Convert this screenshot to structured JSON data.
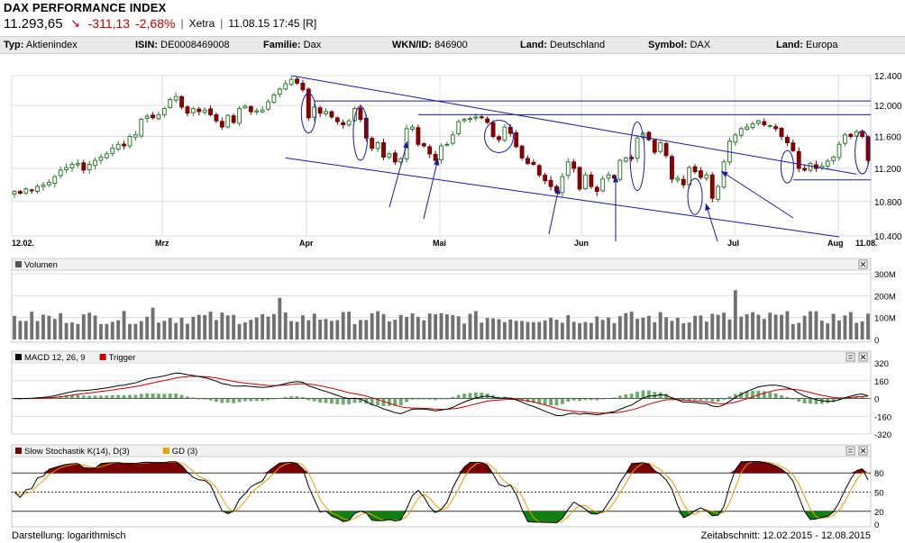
{
  "header": {
    "title": "DAX PERFORMANCE INDEX",
    "last": "11.293,65",
    "change": "-311,13",
    "change_pct": "-2,68%",
    "exchange": "Xetra",
    "timestamp": "11.08.15 17:45 [R]",
    "arrow_icon": "down-arrow-icon"
  },
  "info_bar": [
    {
      "label": "Typ:",
      "value": "Aktienindex"
    },
    {
      "label": "ISIN:",
      "value": "DE0008469008"
    },
    {
      "label": "Familie:",
      "value": "Dax"
    },
    {
      "label": "WKN/ID:",
      "value": "846900"
    },
    {
      "label": "Land:",
      "value": "Deutschland"
    },
    {
      "label": "Symbol:",
      "value": "DAX"
    },
    {
      "label": "Land:",
      "value": "Europa"
    }
  ],
  "footer": {
    "left": "Darstellung: logarithmisch",
    "right": "Zeitabschnitt: 12.02.2015 - 12.08.2015"
  },
  "chart_data": [
    {
      "type": "candlestick",
      "name": "price",
      "log_scale": true,
      "ylim": [
        10400,
        12400
      ],
      "y_ticks": [
        "12.400",
        "12.000",
        "11.600",
        "11.200",
        "10.800",
        "10.400"
      ],
      "x_ticks": [
        "12.02.",
        "Mrz",
        "Apr",
        "Mai",
        "Jun",
        "Jul",
        "Aug",
        "11.08."
      ],
      "grid": true,
      "close": [
        10920,
        10900,
        10950,
        10930,
        10980,
        11000,
        11030,
        11100,
        11180,
        11210,
        11250,
        11260,
        11180,
        11250,
        11300,
        11340,
        11380,
        11450,
        11500,
        11480,
        11600,
        11620,
        11820,
        11860,
        11840,
        11880,
        11960,
        12080,
        12120,
        11980,
        11900,
        11960,
        11920,
        11940,
        11880,
        11800,
        11720,
        11870,
        11780,
        11960,
        11990,
        11920,
        11930,
        11940,
        12050,
        12140,
        12220,
        12290,
        12350,
        12300,
        12210,
        11840,
        11980,
        11900,
        11920,
        11850,
        11790,
        11750,
        11800,
        11960,
        11820,
        11580,
        11450,
        11520,
        11340,
        11380,
        11280,
        11320,
        11700,
        11720,
        11500,
        11480,
        11380,
        11300,
        11480,
        11500,
        11620,
        11790,
        11820,
        11830,
        11850,
        11840,
        11780,
        11600,
        11560,
        11720,
        11640,
        11470,
        11330,
        11260,
        11250,
        11120,
        11050,
        10980,
        10920,
        11100,
        11280,
        11200,
        10950,
        11120,
        10980,
        10920,
        11070,
        11120,
        11080,
        11300,
        11330,
        11320,
        11580,
        11640,
        11560,
        11400,
        11520,
        11360,
        11070,
        11080,
        11000,
        11210,
        11160,
        11090,
        11120,
        10840,
        10980,
        11280,
        11540,
        11620,
        11700,
        11720,
        11760,
        11800,
        11750,
        11740,
        11700,
        11600,
        11520,
        11420,
        11200,
        11180,
        11260,
        11200,
        11230,
        11290,
        11340,
        11500,
        11620,
        11600,
        11660,
        11600,
        11300
      ],
      "overlay_lines": "trend channel (blue)",
      "annotations": "ellipses and arrows (blue)"
    },
    {
      "type": "bar",
      "name": "Volumen",
      "y_ticks": [
        "300M",
        "200M",
        "100M",
        "0"
      ],
      "ylim": [
        0,
        300
      ]
    },
    {
      "type": "line",
      "name": "MACD 12, 26, 9",
      "series": [
        {
          "name": "MACD 12, 26, 9",
          "color": "#000000"
        },
        {
          "name": "Trigger",
          "color": "#cc0000"
        }
      ],
      "histogram_color": "#3f8f3f",
      "y_ticks": [
        "320",
        "160",
        "0",
        "-160",
        "-320"
      ],
      "ylim": [
        -320,
        320
      ]
    },
    {
      "type": "line",
      "name": "Slow Stochastik K(14), D(3)",
      "series": [
        {
          "name": "Slow Stochastik K(14), D(3)",
          "color": "#000000"
        },
        {
          "name": "GD (3)",
          "color": "#e8a000"
        }
      ],
      "fill_overbought": "#7a0000",
      "fill_oversold": "#108010",
      "y_ticks": [
        "80",
        "50",
        "20",
        "0"
      ],
      "ylim": [
        0,
        100
      ]
    }
  ]
}
